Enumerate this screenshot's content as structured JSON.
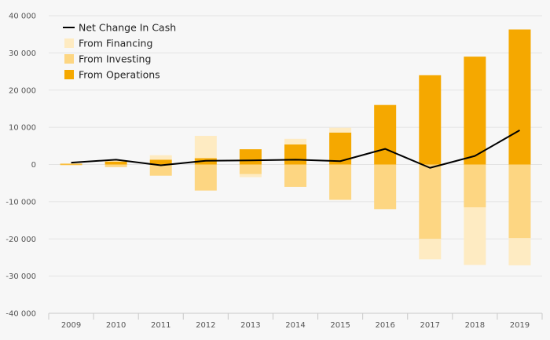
{
  "chart_data": {
    "type": "bar",
    "stacked": true,
    "categories": [
      "2009",
      "2010",
      "2011",
      "2012",
      "2013",
      "2014",
      "2015",
      "2016",
      "2017",
      "2018",
      "2019"
    ],
    "ylim": [
      -40000,
      40000
    ],
    "yticks": [
      40000,
      30000,
      20000,
      10000,
      0,
      -10000,
      -20000,
      -30000,
      -40000
    ],
    "ytick_labels": [
      "40 000",
      "30 000",
      "20 000",
      "10 000",
      "0",
      "-10 000",
      "-20 000",
      "-30 000",
      "-40 000"
    ],
    "grid": true,
    "legend_position": "top-left",
    "series": [
      {
        "name": "From Operations",
        "kind": "bar",
        "color": "#f5a800",
        "values": [
          200,
          800,
          1300,
          1700,
          4100,
          5400,
          8600,
          16000,
          24000,
          29000,
          36300
        ]
      },
      {
        "name": "From Investing",
        "kind": "bar",
        "color": "#fdd682",
        "values": [
          -200,
          -700,
          -3000,
          -7000,
          -2600,
          -6000,
          -9500,
          -12000,
          -20000,
          -11500,
          -19800
        ]
      },
      {
        "name": "From Financing",
        "kind": "bar",
        "color": "#feebc2",
        "values": [
          100,
          300,
          1200,
          6000,
          -800,
          1500,
          1300,
          0,
          -5500,
          -15500,
          -7300
        ]
      },
      {
        "name": "Net Change In Cash",
        "kind": "line",
        "color": "#000000",
        "values": [
          500,
          1300,
          -200,
          1000,
          1100,
          1300,
          900,
          4200,
          -900,
          2300,
          9200
        ]
      }
    ],
    "legend": [
      {
        "label": "Net Change In Cash",
        "symbol": "line",
        "color": "#000000"
      },
      {
        "label": "From Financing",
        "symbol": "square",
        "color": "#feebc2"
      },
      {
        "label": "From Investing",
        "symbol": "square",
        "color": "#fdd682"
      },
      {
        "label": "From Operations",
        "symbol": "square",
        "color": "#f5a800"
      }
    ]
  }
}
